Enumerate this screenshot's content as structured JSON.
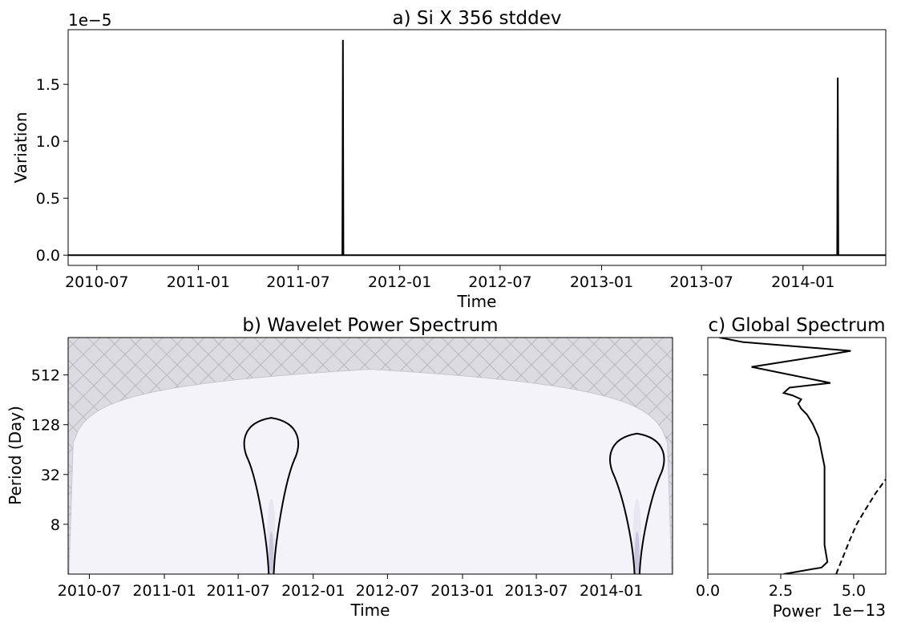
{
  "chart_data": [
    {
      "id": "a",
      "type": "line",
      "title": "a) Si X 356 stddev",
      "xlabel": "Time",
      "ylabel": "Variation",
      "offset_text": "1e−5",
      "x_ticks": [
        "2010-07",
        "2011-01",
        "2011-07",
        "2012-01",
        "2012-07",
        "2013-01",
        "2013-07",
        "2014-01"
      ],
      "y_ticks": [
        "0.0",
        "0.5",
        "1.0",
        "1.5"
      ],
      "y_tick_values": [
        0.0,
        0.5,
        1.0,
        1.5
      ],
      "ylim": [
        -0.09,
        1.98
      ],
      "xlim": [
        "2010-05-10",
        "2014-05-31"
      ],
      "grid": false,
      "series": [
        {
          "color": "#000000",
          "points": [
            [
              "2010-05-10",
              0.0
            ],
            [
              "2011-09-19",
              0.0
            ],
            [
              "2011-09-20",
              1.89
            ],
            [
              "2011-09-21",
              0.0
            ],
            [
              "2014-03-04",
              0.0
            ],
            [
              "2014-03-05",
              1.56
            ],
            [
              "2014-03-06",
              0.0
            ],
            [
              "2014-05-31",
              0.0
            ]
          ]
        }
      ]
    },
    {
      "id": "b",
      "type": "heatmap",
      "title": "b) Wavelet Power Spectrum",
      "xlabel": "Time",
      "ylabel": "Period (Day)",
      "x_ticks": [
        "2010-07",
        "2011-01",
        "2011-07",
        "2012-01",
        "2012-07",
        "2013-01",
        "2013-07",
        "2014-01"
      ],
      "y_ticks": [
        "8",
        "32",
        "128",
        "512"
      ],
      "y_tick_values": [
        8,
        32,
        128,
        512
      ],
      "y_scale": "log2",
      "ylim": [
        2,
        1450
      ],
      "xlim": [
        "2010-05-10",
        "2014-05-31"
      ],
      "background_color": "#f4f3f9",
      "cone_color": "#dcdbe2",
      "hatch_color": "#b9b8c0",
      "power_color": "#6b4f9a",
      "cone_peak": {
        "date": "2012-05-20",
        "period": 600
      },
      "contours": [
        {
          "center": "2011-09-20",
          "top_period": 155
        },
        {
          "center": "2014-03-05",
          "top_period": 100
        }
      ]
    },
    {
      "id": "c",
      "type": "line",
      "title": "c) Global Spectrum",
      "xlabel": "Power",
      "offset_text": "1e−13",
      "x_ticks": [
        "0.0",
        "2.5",
        "5.0"
      ],
      "x_tick_values": [
        0.0,
        2.5,
        5.0
      ],
      "xlim": [
        0,
        6.1
      ],
      "y_scale": "log2",
      "ylim": [
        2,
        1450
      ],
      "series": [
        {
          "style": "solid",
          "color": "#000000",
          "points": [
            [
              2.6,
              2.0
            ],
            [
              3.9,
              2.4
            ],
            [
              4.1,
              2.8
            ],
            [
              4.0,
              4.5
            ],
            [
              4.0,
              8.0
            ],
            [
              4.0,
              16.0
            ],
            [
              4.0,
              40.0
            ],
            [
              3.9,
              60.0
            ],
            [
              3.8,
              90.0
            ],
            [
              3.6,
              130.0
            ],
            [
              3.4,
              170.0
            ],
            [
              3.2,
              200.0
            ],
            [
              3.1,
              230.0
            ],
            [
              3.2,
              260.0
            ],
            [
              2.9,
              290.0
            ],
            [
              2.6,
              310.0
            ],
            [
              2.8,
              360.0
            ],
            [
              4.2,
              410.0
            ],
            [
              1.5,
              640.0
            ],
            [
              3.9,
              870.0
            ],
            [
              4.9,
              1000.0
            ],
            [
              1.2,
              1280.0
            ],
            [
              0.4,
              1450.0
            ]
          ]
        },
        {
          "style": "dashed",
          "color": "#000000",
          "points": [
            [
              4.4,
              2.0
            ],
            [
              4.6,
              3.0
            ],
            [
              4.85,
              5.0
            ],
            [
              5.1,
              8.0
            ],
            [
              5.4,
              12.0
            ],
            [
              5.75,
              19.0
            ],
            [
              6.1,
              28.0
            ]
          ]
        }
      ]
    }
  ]
}
